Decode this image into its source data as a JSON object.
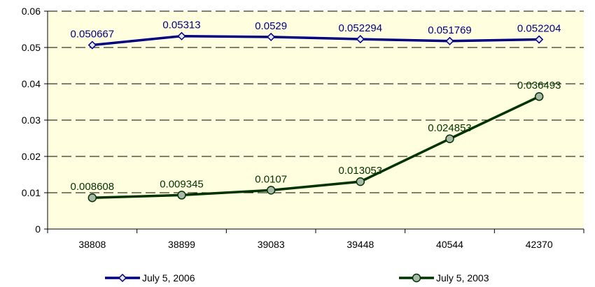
{
  "chart_data": {
    "type": "line",
    "title": "",
    "xlabel": "",
    "ylabel": "",
    "categories": [
      "38808",
      "38899",
      "39083",
      "39448",
      "40544",
      "42370"
    ],
    "ylim": [
      0,
      0.06
    ],
    "yticks": [
      "0",
      "0.01",
      "0.02",
      "0.03",
      "0.04",
      "0.05",
      "0.06"
    ],
    "grid": "dashed horizontal",
    "legend_position": "bottom",
    "plot_background": "#FFFFE0",
    "series": [
      {
        "name": "July 5, 2006",
        "color": "#000080",
        "marker": "diamond",
        "marker_fill": "#E6E6FA",
        "values": [
          0.050667,
          0.05313,
          0.0529,
          0.052294,
          0.051769,
          0.052204
        ],
        "labels": [
          "0.050667",
          "0.05313",
          "0.0529",
          "0.052294",
          "0.051769",
          "0.052204"
        ]
      },
      {
        "name": "July 5, 2003",
        "color": "#003300",
        "marker": "circle",
        "marker_fill": "#A9B8A9",
        "values": [
          0.008608,
          0.009345,
          0.0107,
          0.013053,
          0.024853,
          0.036493
        ],
        "labels": [
          "0.008608",
          "0.009345",
          "0.0107",
          "0.013053",
          "0.024853",
          "0.036493"
        ]
      }
    ]
  }
}
